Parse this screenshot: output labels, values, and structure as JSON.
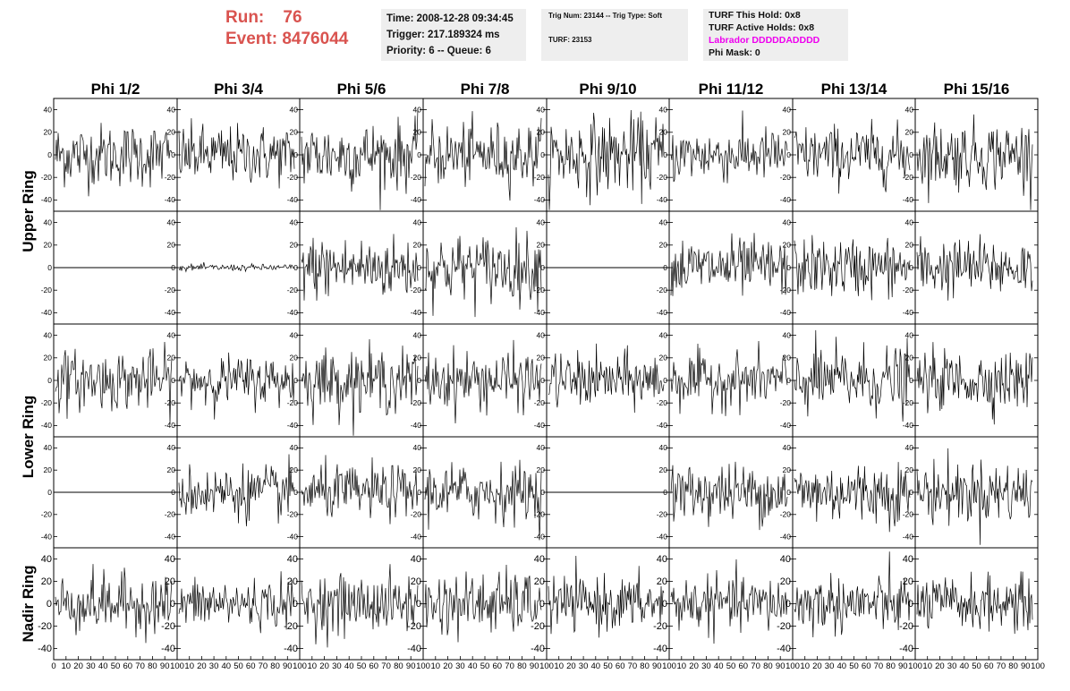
{
  "header": {
    "run_label": "Run:",
    "run_value": "76",
    "event_label": "Event:",
    "event_value": "8476044"
  },
  "info_box_1": {
    "time": "Time: 2008-12-28 09:34:45",
    "trigger": "Trigger: 217.189324 ms",
    "priority": "Priority: 6 -- Queue: 6"
  },
  "info_box_2": {
    "trig": "Trig Num: 23144 -- Trig Type: Soft",
    "turf": "TURF: 23153"
  },
  "info_box_3": {
    "this_hold": "TURF This Hold: 0x8",
    "active_holds": "TURF Active Holds: 0x8",
    "labrador": "Labrador DDDDDADDDD",
    "phi_mask": "Phi Mask: 0"
  },
  "colors": {
    "run_text": "#d9534f",
    "labrador_text": "#ee00ee",
    "trace": "#000000",
    "info_bg": "#eeeeee"
  },
  "chart_data": {
    "type": "line",
    "columns": [
      "Phi 1/2",
      "Phi 3/4",
      "Phi 5/6",
      "Phi 7/8",
      "Phi 9/10",
      "Phi 11/12",
      "Phi 13/14",
      "Phi 15/16"
    ],
    "row_labels": [
      "Upper Ring",
      "Lower Ring",
      "Nadir Ring"
    ],
    "xlim": [
      0,
      100
    ],
    "ylim": [
      -50,
      50
    ],
    "x_tick_labels": [
      "0",
      "10",
      "20",
      "30",
      "40",
      "50",
      "60",
      "70",
      "80",
      "90",
      "100"
    ],
    "y_tick_labels": [
      "-40",
      "-20",
      "0",
      "20",
      "40"
    ],
    "grid": false,
    "panels": [
      [
        "noise:14",
        "noise:13",
        "noise:15",
        "noise:14",
        "noise:17",
        "noise:12",
        "noise:13",
        "noise:15"
      ],
      [
        "flat",
        "noise:1.5",
        "noise:14",
        "noise:15",
        "flat",
        "noise:13",
        "noise:13",
        "noise:13"
      ],
      [
        "noise:13",
        "noise:11",
        "noise:14",
        "noise:13",
        "noise:12",
        "noise:12",
        "noise:15",
        "noise:13"
      ],
      [
        "flat",
        "noise:12",
        "noise:12",
        "noise:13",
        "flat",
        "noise:13",
        "noise:14",
        "noise:14"
      ],
      [
        "noise:13",
        "noise:11",
        "noise:13",
        "noise:14",
        "noise:12",
        "noise:12",
        "noise:13",
        "noise:12"
      ]
    ]
  }
}
